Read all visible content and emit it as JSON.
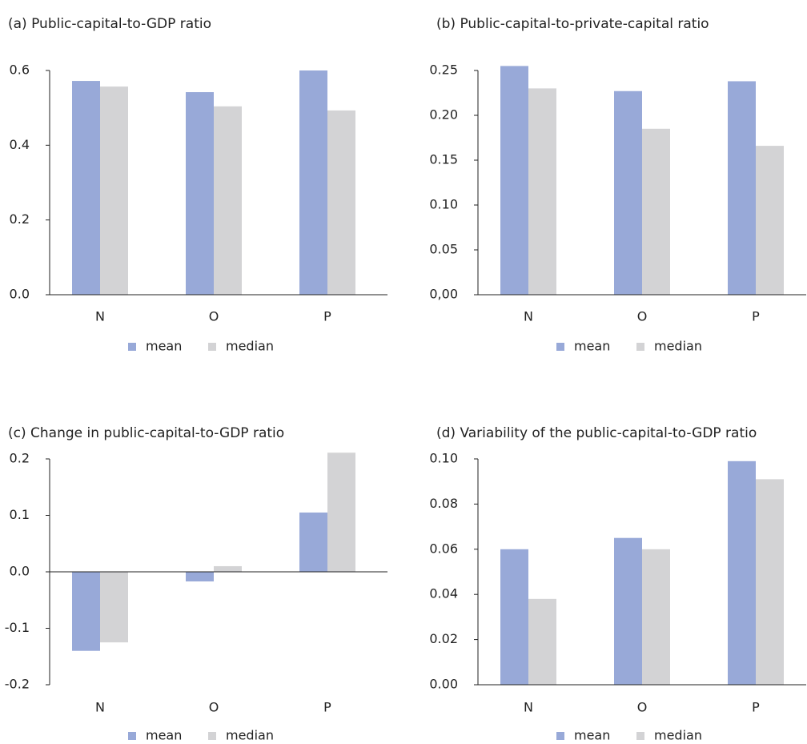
{
  "chart_data": [
    {
      "type": "bar",
      "title": "(a) Public-capital-to-GDP ratio",
      "categories": [
        "N",
        "O",
        "P"
      ],
      "series": [
        {
          "name": "mean",
          "color": "#98a9d8",
          "values": [
            0.572,
            0.542,
            0.6
          ]
        },
        {
          "name": "median",
          "color": "#d3d3d5",
          "values": [
            0.557,
            0.504,
            0.493
          ]
        }
      ],
      "ylim": [
        0,
        0.6
      ],
      "yticks": [
        {
          "value": 0,
          "label": "0.0"
        },
        0.2,
        0.4,
        0.6
      ]
    },
    {
      "type": "bar",
      "title": "(b) Public-capital-to-private-capital ratio",
      "categories": [
        "N",
        "O",
        "P"
      ],
      "series": [
        {
          "name": "mean",
          "color": "#98a9d8",
          "values": [
            0.255,
            0.227,
            0.238
          ]
        },
        {
          "name": "median",
          "color": "#d3d3d5",
          "values": [
            0.23,
            0.185,
            0.166
          ]
        }
      ],
      "ylim": [
        0,
        0.25
      ],
      "yticks": [
        {
          "value": 0,
          "label": "0,00"
        },
        0.05,
        {
          "value": 0.1,
          "label": "0.10"
        },
        0.15,
        {
          "value": 0.2,
          "label": "0.20"
        },
        0.25
      ]
    },
    {
      "type": "bar",
      "title": "(c) Change in public-capital-to-GDP ratio",
      "categories": [
        "N",
        "O",
        "P"
      ],
      "series": [
        {
          "name": "mean",
          "color": "#98a9d8",
          "values": [
            -0.14,
            -0.017,
            0.105
          ]
        },
        {
          "name": "median",
          "color": "#d3d3d5",
          "values": [
            -0.125,
            0.01,
            0.211
          ]
        }
      ],
      "ylim": [
        -0.2,
        0.2
      ],
      "yticks": [
        -0.2,
        -0.1,
        {
          "value": 0,
          "label": "0.0"
        },
        0.1,
        0.2
      ]
    },
    {
      "type": "bar",
      "title": "(d) Variability of the public-capital-to-GDP ratio",
      "categories": [
        "N",
        "O",
        "P"
      ],
      "series": [
        {
          "name": "mean",
          "color": "#98a9d8",
          "values": [
            0.06,
            0.065,
            0.099
          ]
        },
        {
          "name": "median",
          "color": "#d3d3d5",
          "values": [
            0.038,
            0.06,
            0.091
          ]
        }
      ],
      "ylim": [
        0,
        0.1
      ],
      "yticks": [
        {
          "value": 0,
          "label": "0.00"
        },
        0.02,
        0.04,
        0.06,
        0.08,
        {
          "value": 0.1,
          "label": "0.10"
        }
      ]
    }
  ]
}
